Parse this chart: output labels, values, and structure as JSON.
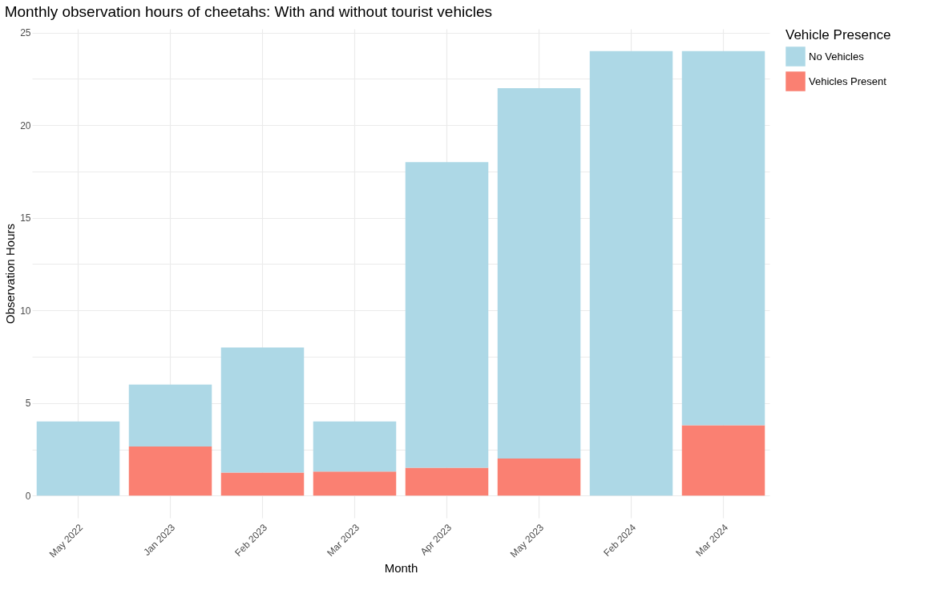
{
  "chart_data": {
    "type": "bar",
    "title": "Monthly observation hours of cheetahs: With and without tourist vehicles",
    "xlabel": "Month",
    "ylabel": "Observation Hours",
    "legend_title": "Vehicle Presence",
    "categories": [
      "May 2022",
      "Jan 2023",
      "Feb 2023",
      "Mar 2023",
      "Apr 2023",
      "May 2023",
      "Feb 2024",
      "Mar 2024"
    ],
    "series": [
      {
        "name": "Vehicles Present",
        "color": "#fa8072",
        "values": [
          0,
          2.65,
          1.25,
          1.3,
          1.5,
          2,
          0,
          3.8
        ]
      },
      {
        "name": "No Vehicles",
        "color": "#add8e6",
        "values": [
          4,
          3.35,
          6.75,
          2.7,
          16.5,
          20,
          24,
          20.2
        ]
      }
    ],
    "stacked": true,
    "ylim": [
      -1.2,
      25.2
    ],
    "yticks": [
      0,
      {
        "value": 2.5,
        "label": null
      },
      5,
      {
        "value": 7.5,
        "label": null
      },
      10,
      {
        "value": 12.5,
        "label": null
      },
      15,
      {
        "value": 17.5,
        "label": null
      },
      20,
      {
        "value": 22.5,
        "label": null
      },
      25
    ],
    "grid": true,
    "legend": "right"
  }
}
